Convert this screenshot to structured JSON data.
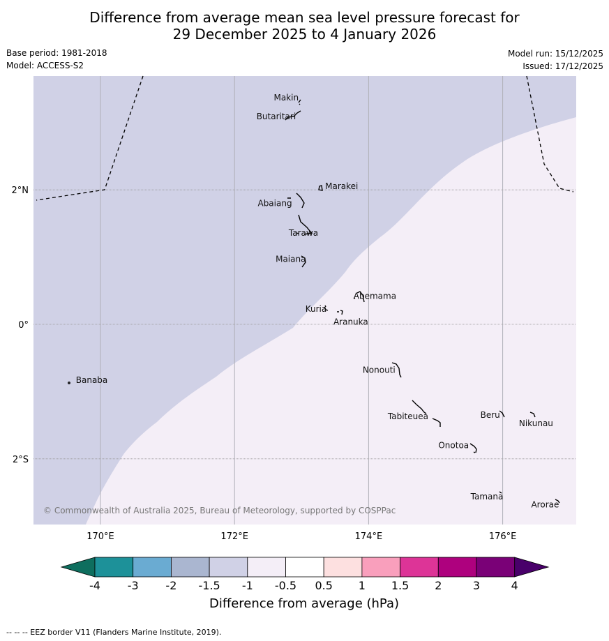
{
  "title_line1": "Difference from average mean sea level pressure forecast for",
  "title_line2": "29 December 2025 to 4 January 2026",
  "base_period": "Base period: 1981-2018",
  "model": "Model: ACCESS-S2",
  "model_run": "Model run: 15/12/2025",
  "issued": "Issued: 17/12/2025",
  "copyright": "© Commonwealth of Australia 2025, Bureau of Meteorology, supported by COSPPac",
  "x_ticks": [
    "170°E",
    "172°E",
    "174°E",
    "176°E"
  ],
  "y_ticks": [
    "2°N",
    "0°",
    "2°S"
  ],
  "places": [
    {
      "name": "Makin",
      "lon": 172.95,
      "lat": 3.35
    },
    {
      "name": "Butaritari",
      "lon": 172.9,
      "lat": 3.05
    },
    {
      "name": "Marakei",
      "lon": 173.3,
      "lat": 2.0
    },
    {
      "name": "Abaiang",
      "lon": 172.95,
      "lat": 1.8
    },
    {
      "name": "Tarawa",
      "lon": 173.1,
      "lat": 1.4
    },
    {
      "name": "Maiana",
      "lon": 173.05,
      "lat": 0.95
    },
    {
      "name": "Abemama",
      "lon": 173.9,
      "lat": 0.4
    },
    {
      "name": "Kuria",
      "lon": 173.4,
      "lat": 0.23
    },
    {
      "name": "Aranuka",
      "lon": 173.6,
      "lat": 0.15
    },
    {
      "name": "Nonouti",
      "lon": 174.4,
      "lat": -0.65
    },
    {
      "name": "Banaba",
      "lon": 169.55,
      "lat": -0.87
    },
    {
      "name": "Tabiteuea",
      "lon": 174.9,
      "lat": -1.35
    },
    {
      "name": "Beru",
      "lon": 176.0,
      "lat": -1.35
    },
    {
      "name": "Nikunau",
      "lon": 176.45,
      "lat": -1.35
    },
    {
      "name": "Onotoa",
      "lon": 175.55,
      "lat": -1.8
    },
    {
      "name": "Tamana",
      "lon": 175.98,
      "lat": -2.5
    },
    {
      "name": "Arorae",
      "lon": 176.8,
      "lat": -2.65
    }
  ],
  "colorbar": {
    "ticks": [
      "-4",
      "-3",
      "-2",
      "-1.5",
      "-1",
      "-0.5",
      "0.5",
      "1",
      "1.5",
      "2",
      "3",
      "4"
    ],
    "colors": [
      "#1d9199",
      "#6aabd2",
      "#aab6d0",
      "#d0d1e6",
      "#f4eef7",
      "#ffffff",
      "#fde0e0",
      "#f99fbc",
      "#dd3497",
      "#ae017e",
      "#7a0177"
    ],
    "under_color": "#0e6e5e",
    "over_color": "#49006a",
    "label": "Difference from average (hPa)"
  },
  "field_colors": {
    "minus_1_5_to_minus_1": "#d0d1e6",
    "minus_1_to_minus_0_5": "#f4eef7"
  },
  "footer": "--  --  -- EEZ border V11 (Flanders Marine Institute, 2019)."
}
